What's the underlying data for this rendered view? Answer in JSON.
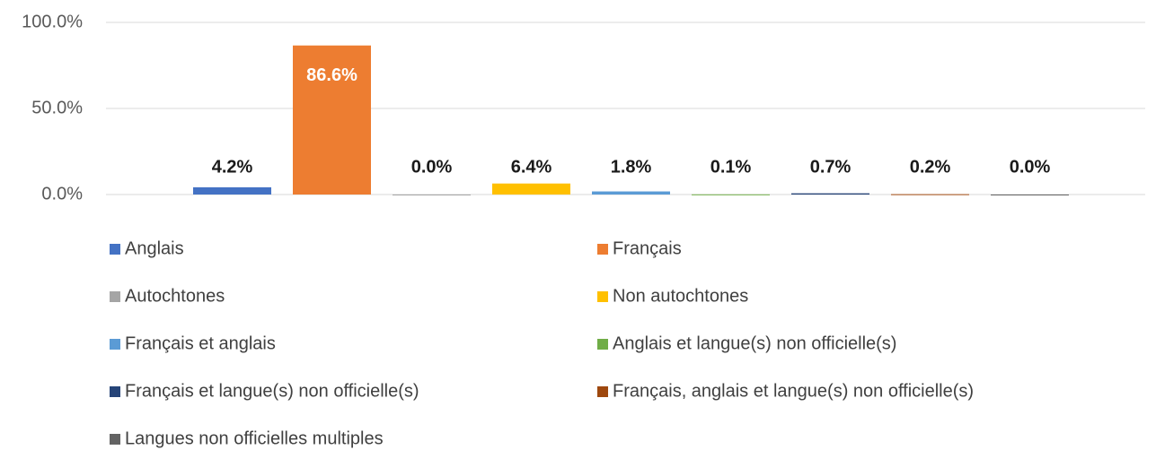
{
  "chart_data": {
    "type": "bar",
    "categories": [
      null
    ],
    "series": [
      {
        "name": "Anglais",
        "color": "#4472c4",
        "values": [
          4.2
        ],
        "value_labels": [
          "4.2%"
        ]
      },
      {
        "name": "Français",
        "color": "#ed7d31",
        "values": [
          86.6
        ],
        "value_labels": [
          "86.6%"
        ]
      },
      {
        "name": "Autochtones",
        "color": "#a5a5a5",
        "values": [
          0.0
        ],
        "value_labels": [
          "0.0%"
        ]
      },
      {
        "name": "Non autochtones",
        "color": "#ffc000",
        "values": [
          6.4
        ],
        "value_labels": [
          "6.4%"
        ]
      },
      {
        "name": "Français et anglais",
        "color": "#5b9bd5",
        "values": [
          1.8
        ],
        "value_labels": [
          "1.8%"
        ]
      },
      {
        "name": "Anglais et langue(s) non officielle(s)",
        "color": "#70ad47",
        "values": [
          0.1
        ],
        "value_labels": [
          "0.1%"
        ]
      },
      {
        "name": "Français et langue(s) non officielle(s)",
        "color": "#264478",
        "values": [
          0.7
        ],
        "value_labels": [
          "0.7%"
        ]
      },
      {
        "name": "Français, anglais et langue(s) non officielle(s)",
        "color": "#9e480e",
        "values": [
          0.2
        ],
        "value_labels": [
          "0.2%"
        ]
      },
      {
        "name": "Langues non officielles multiples",
        "color": "#636363",
        "values": [
          0.0
        ],
        "value_labels": [
          "0.0%"
        ]
      }
    ],
    "ylim": [
      0,
      100
    ],
    "yticks": [
      {
        "value": 0,
        "label": "0.0%"
      },
      {
        "value": 50,
        "label": "50.0%"
      },
      {
        "value": 100,
        "label": "100.0%"
      }
    ],
    "grid": true,
    "legend": "bottom"
  }
}
